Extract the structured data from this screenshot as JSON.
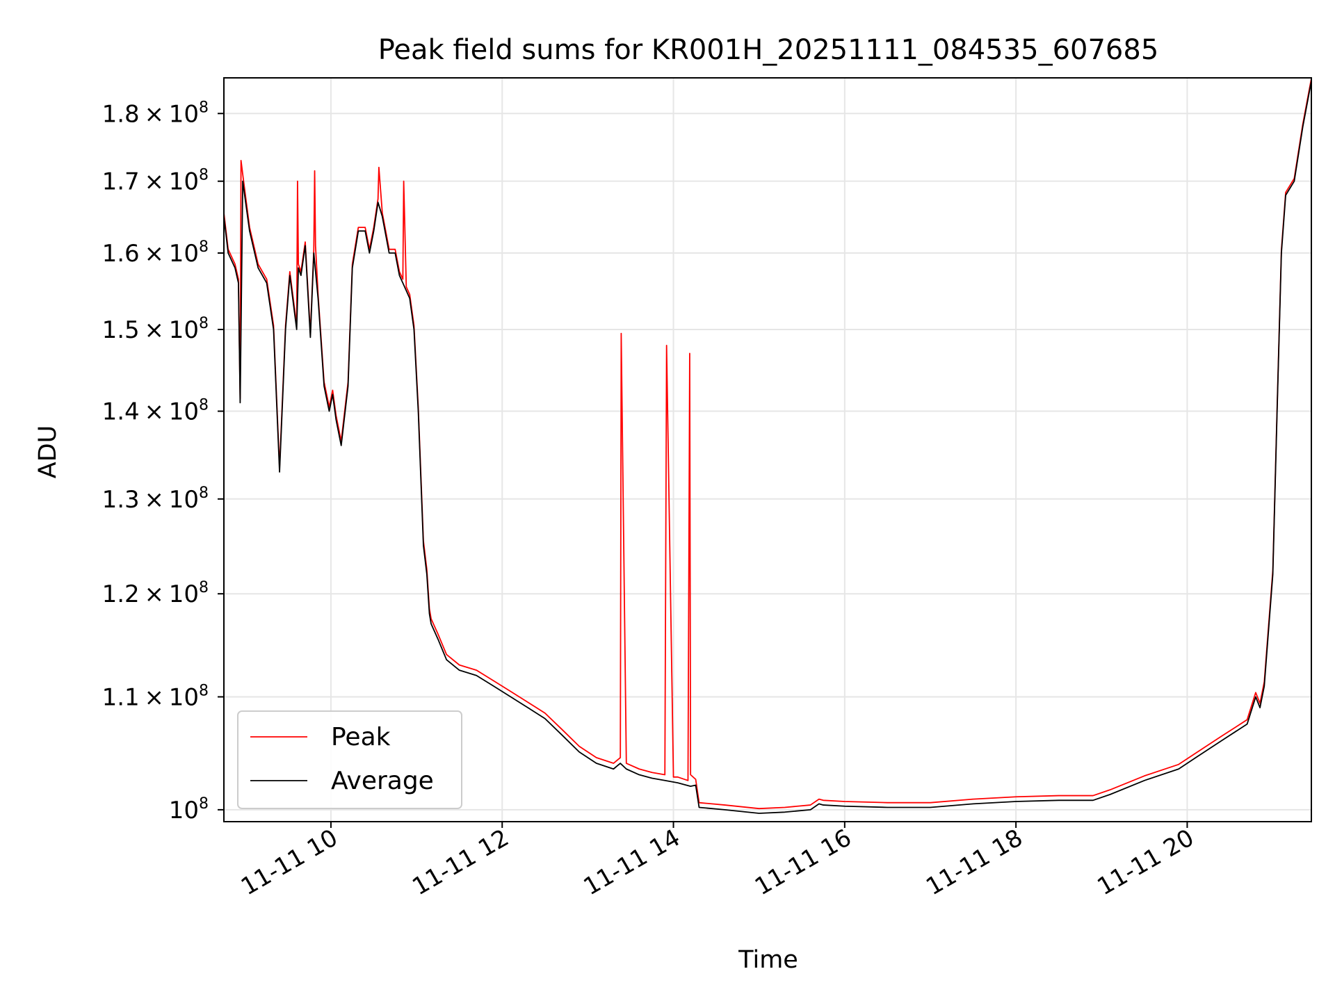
{
  "chart_data": {
    "type": "line",
    "title": "Peak field sums for KR001H_20251111_084535_607685",
    "xlabel": "Time",
    "ylabel": "ADU",
    "yscale": "log",
    "grid": true,
    "legend_position": "lower-left",
    "colors": {
      "Peak": "#ff0000",
      "Average": "#000000",
      "grid": "#e6e6e6"
    },
    "xlim": [
      8.75,
      21.45
    ],
    "ylim": [
      99000000,
      185500000
    ],
    "x_ticks": [
      {
        "value": 10,
        "label": "11-11 10"
      },
      {
        "value": 12,
        "label": "11-11 12"
      },
      {
        "value": 14,
        "label": "11-11 14"
      },
      {
        "value": 16,
        "label": "11-11 16"
      },
      {
        "value": 18,
        "label": "11-11 18"
      },
      {
        "value": 20,
        "label": "11-11 20"
      }
    ],
    "y_ticks": [
      {
        "value": 100000000,
        "mantissa": "",
        "exp": "8"
      },
      {
        "value": 110000000,
        "mantissa": "1.1",
        "exp": "8"
      },
      {
        "value": 120000000,
        "mantissa": "1.2",
        "exp": "8"
      },
      {
        "value": 130000000,
        "mantissa": "1.3",
        "exp": "8"
      },
      {
        "value": 140000000,
        "mantissa": "1.4",
        "exp": "8"
      },
      {
        "value": 150000000,
        "mantissa": "1.5",
        "exp": "8"
      },
      {
        "value": 160000000,
        "mantissa": "1.6",
        "exp": "8"
      },
      {
        "value": 170000000,
        "mantissa": "1.7",
        "exp": "8"
      },
      {
        "value": 180000000,
        "mantissa": "1.8",
        "exp": "8"
      }
    ],
    "series": [
      {
        "name": "Average",
        "x": [
          8.75,
          8.8,
          8.88,
          8.92,
          8.94,
          8.97,
          9.05,
          9.15,
          9.25,
          9.33,
          9.4,
          9.47,
          9.52,
          9.6,
          9.62,
          9.65,
          9.7,
          9.76,
          9.8,
          9.85,
          9.92,
          9.98,
          10.02,
          10.06,
          10.12,
          10.2,
          10.25,
          10.32,
          10.4,
          10.45,
          10.5,
          10.55,
          10.6,
          10.68,
          10.75,
          10.8,
          10.84,
          10.88,
          10.92,
          10.97,
          11.02,
          11.08,
          11.12,
          11.15,
          11.17,
          11.25,
          11.35,
          11.5,
          11.7,
          11.9,
          12.1,
          12.3,
          12.5,
          12.7,
          12.9,
          13.1,
          13.3,
          13.38,
          13.45,
          13.6,
          13.75,
          13.9,
          14.05,
          14.2,
          14.26,
          14.3,
          14.6,
          15.0,
          15.3,
          15.6,
          15.7,
          15.75,
          16.0,
          16.5,
          17.0,
          17.5,
          18.0,
          18.5,
          18.9,
          19.1,
          19.5,
          19.9,
          20.1,
          20.4,
          20.7,
          20.8,
          20.85,
          20.9,
          21.0,
          21.05,
          21.1,
          21.15,
          21.25,
          21.35,
          21.45
        ],
        "values": [
          165000000,
          160000000,
          158000000,
          156000000,
          141000000,
          170000000,
          163000000,
          158000000,
          156000000,
          150000000,
          133000000,
          150000000,
          157000000,
          150000000,
          158000000,
          157000000,
          161000000,
          149000000,
          160000000,
          154000000,
          143000000,
          140000000,
          142000000,
          139000000,
          136000000,
          143000000,
          158000000,
          163000000,
          163000000,
          160000000,
          163000000,
          167000000,
          165000000,
          160000000,
          160000000,
          157000000,
          156000000,
          155000000,
          154000000,
          150000000,
          140000000,
          125000000,
          122000000,
          118000000,
          117000000,
          115500000,
          113500000,
          112500000,
          112000000,
          111000000,
          110000000,
          109000000,
          108000000,
          106500000,
          105000000,
          104000000,
          103500000,
          104000000,
          103500000,
          103000000,
          102700000,
          102500000,
          102300000,
          102000000,
          102100000,
          100200000,
          100000000,
          99700000,
          99800000,
          100000000,
          100500000,
          100400000,
          100300000,
          100200000,
          100200000,
          100500000,
          100700000,
          100800000,
          100800000,
          101300000,
          102500000,
          103500000,
          104500000,
          106000000,
          107500000,
          110000000,
          109000000,
          111000000,
          122000000,
          140000000,
          160000000,
          168000000,
          170000000,
          178000000,
          185000000
        ]
      },
      {
        "name": "Peak",
        "x": [
          8.75,
          8.8,
          8.88,
          8.92,
          8.94,
          8.95,
          8.97,
          9.05,
          9.15,
          9.25,
          9.33,
          9.4,
          9.47,
          9.52,
          9.6,
          9.61,
          9.62,
          9.65,
          9.7,
          9.76,
          9.8,
          9.81,
          9.82,
          9.85,
          9.92,
          9.98,
          10.02,
          10.06,
          10.12,
          10.2,
          10.25,
          10.32,
          10.4,
          10.45,
          10.5,
          10.55,
          10.56,
          10.6,
          10.68,
          10.75,
          10.8,
          10.84,
          10.85,
          10.88,
          10.92,
          10.97,
          11.02,
          11.08,
          11.12,
          11.15,
          11.17,
          11.25,
          11.35,
          11.5,
          11.7,
          11.9,
          12.1,
          12.3,
          12.5,
          12.7,
          12.9,
          13.1,
          13.3,
          13.38,
          13.39,
          13.45,
          13.6,
          13.75,
          13.9,
          13.92,
          14.0,
          14.05,
          14.17,
          14.19,
          14.2,
          14.26,
          14.3,
          14.6,
          15.0,
          15.3,
          15.6,
          15.7,
          15.75,
          16.0,
          16.5,
          17.0,
          17.5,
          18.0,
          18.5,
          18.9,
          19.1,
          19.5,
          19.9,
          20.1,
          20.4,
          20.7,
          20.8,
          20.85,
          20.9,
          21.0,
          21.05,
          21.1,
          21.15,
          21.25,
          21.35,
          21.45
        ],
        "values": [
          165500000,
          160500000,
          158500000,
          156500000,
          141500000,
          173000000,
          171000000,
          163500000,
          158500000,
          156500000,
          150500000,
          133500000,
          150500000,
          157500000,
          150500000,
          170000000,
          158500000,
          157500000,
          161500000,
          149500000,
          160500000,
          171500000,
          161000000,
          154500000,
          143500000,
          140500000,
          142500000,
          139500000,
          136500000,
          143500000,
          158500000,
          163500000,
          163500000,
          160500000,
          163500000,
          167500000,
          172000000,
          165500000,
          160500000,
          160500000,
          157500000,
          156500000,
          170000000,
          155500000,
          154500000,
          150500000,
          140500000,
          125500000,
          122500000,
          118500000,
          117500000,
          116000000,
          114000000,
          113000000,
          112500000,
          111500000,
          110500000,
          109500000,
          108500000,
          107000000,
          105500000,
          104500000,
          104000000,
          104500000,
          149500000,
          104000000,
          103500000,
          103200000,
          103000000,
          148000000,
          102800000,
          102800000,
          102500000,
          147000000,
          103000000,
          102600000,
          100600000,
          100400000,
          100100000,
          100200000,
          100400000,
          100900000,
          100800000,
          100700000,
          100600000,
          100600000,
          100900000,
          101100000,
          101200000,
          101200000,
          101700000,
          102900000,
          103900000,
          104900000,
          106400000,
          107900000,
          110400000,
          109400000,
          111400000,
          122400000,
          140400000,
          160400000,
          168400000,
          170400000,
          178400000,
          185400000
        ]
      }
    ]
  }
}
